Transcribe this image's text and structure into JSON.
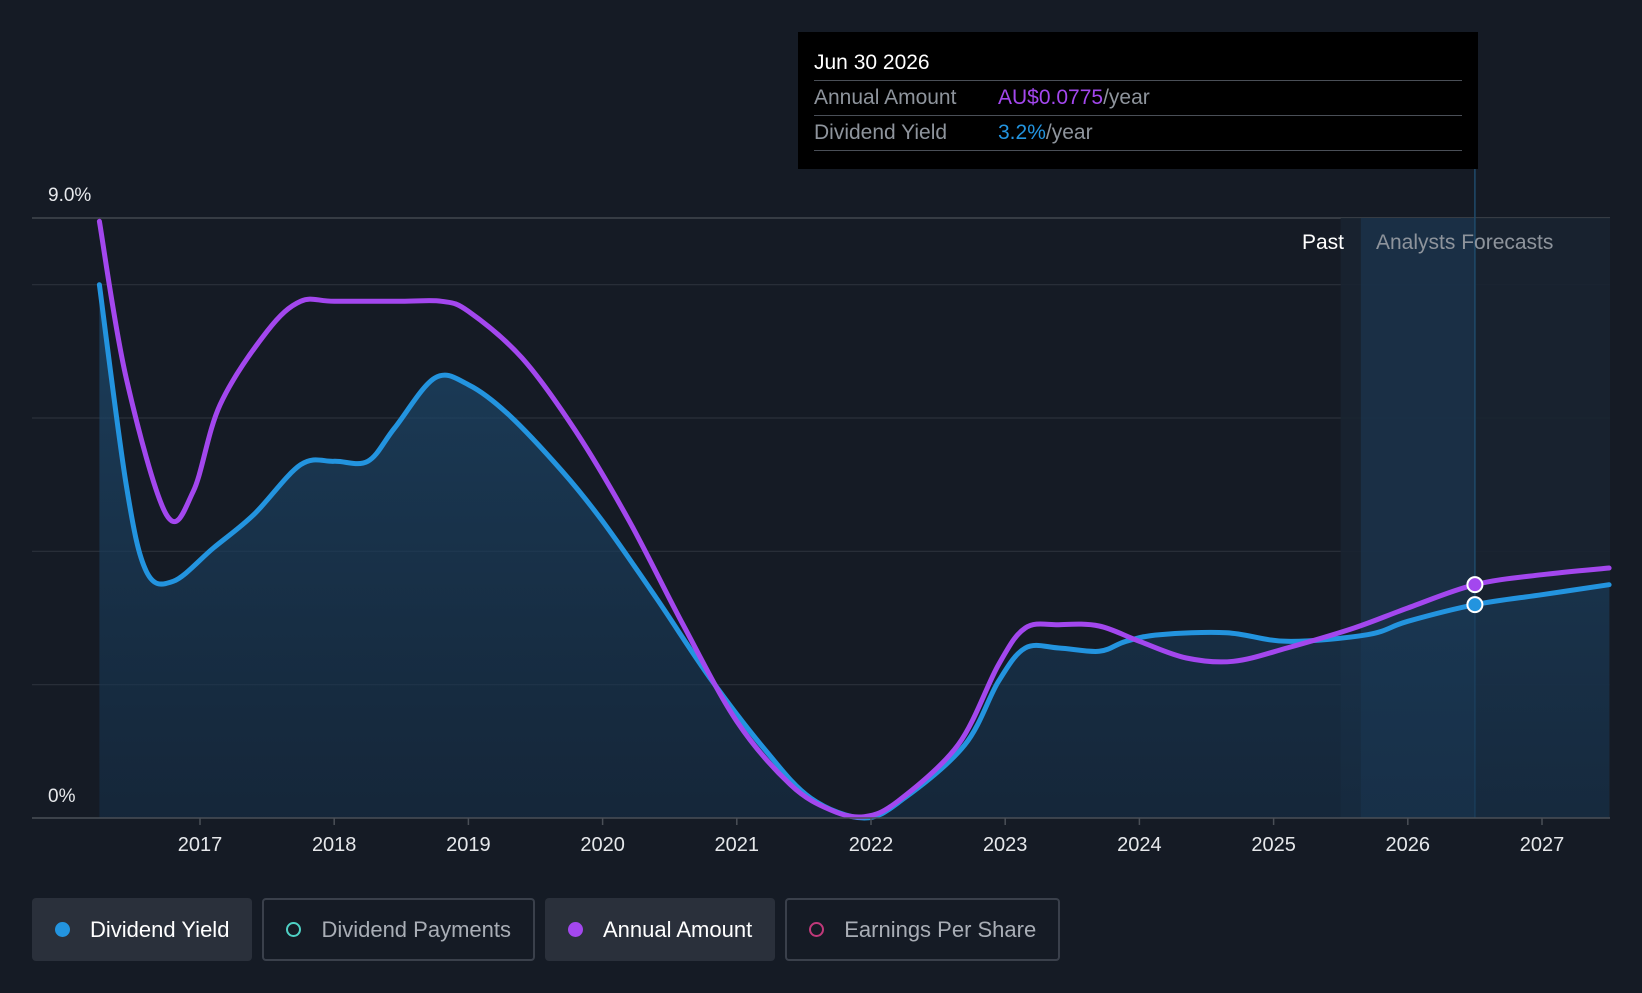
{
  "chart_data": {
    "type": "line",
    "y_axis": {
      "max_label": "9.0%",
      "min_label": "0%",
      "ylim": [
        0,
        9.0
      ]
    },
    "x_axis": {
      "tick_labels": [
        "2017",
        "2018",
        "2019",
        "2020",
        "2021",
        "2022",
        "2023",
        "2024",
        "2025",
        "2026",
        "2027"
      ],
      "xlim": [
        2016.0,
        2027.5
      ]
    },
    "regions": {
      "past_label": "Past",
      "forecast_label": "Analysts Forecasts",
      "forecast_start": 2025.5,
      "highlight_start": 2025.65,
      "highlight_end": 2026.5
    },
    "series": [
      {
        "name": "Dividend Yield",
        "color": "#2394df",
        "area": true,
        "points": [
          [
            2016.25,
            8.0
          ],
          [
            2016.45,
            5.0
          ],
          [
            2016.6,
            3.7
          ],
          [
            2016.8,
            3.55
          ],
          [
            2017.1,
            4.05
          ],
          [
            2017.4,
            4.55
          ],
          [
            2017.75,
            5.3
          ],
          [
            2018.0,
            5.35
          ],
          [
            2018.25,
            5.35
          ],
          [
            2018.45,
            5.85
          ],
          [
            2018.75,
            6.6
          ],
          [
            2019.0,
            6.5
          ],
          [
            2019.3,
            6.05
          ],
          [
            2019.7,
            5.2
          ],
          [
            2020.0,
            4.45
          ],
          [
            2020.4,
            3.3
          ],
          [
            2020.8,
            2.1
          ],
          [
            2021.2,
            1.05
          ],
          [
            2021.55,
            0.3
          ],
          [
            2021.95,
            0.0
          ],
          [
            2022.25,
            0.3
          ],
          [
            2022.7,
            1.1
          ],
          [
            2022.95,
            2.05
          ],
          [
            2023.15,
            2.55
          ],
          [
            2023.4,
            2.55
          ],
          [
            2023.7,
            2.5
          ],
          [
            2023.9,
            2.65
          ],
          [
            2024.15,
            2.75
          ],
          [
            2024.65,
            2.78
          ],
          [
            2025.1,
            2.65
          ],
          [
            2025.7,
            2.75
          ],
          [
            2026.0,
            2.95
          ],
          [
            2026.5,
            3.2
          ],
          [
            2027.0,
            3.35
          ],
          [
            2027.5,
            3.5
          ]
        ]
      },
      {
        "name": "Annual Amount",
        "color": "#a347ee",
        "area": false,
        "points": [
          [
            2016.25,
            8.95
          ],
          [
            2016.45,
            6.6
          ],
          [
            2016.75,
            4.55
          ],
          [
            2016.95,
            4.9
          ],
          [
            2017.15,
            6.2
          ],
          [
            2017.5,
            7.3
          ],
          [
            2017.75,
            7.75
          ],
          [
            2018.0,
            7.75
          ],
          [
            2018.5,
            7.75
          ],
          [
            2018.8,
            7.75
          ],
          [
            2019.0,
            7.6
          ],
          [
            2019.4,
            6.9
          ],
          [
            2019.8,
            5.8
          ],
          [
            2020.2,
            4.45
          ],
          [
            2020.6,
            2.9
          ],
          [
            2021.0,
            1.45
          ],
          [
            2021.4,
            0.5
          ],
          [
            2021.7,
            0.12
          ],
          [
            2021.95,
            0.02
          ],
          [
            2022.2,
            0.25
          ],
          [
            2022.65,
            1.1
          ],
          [
            2022.95,
            2.3
          ],
          [
            2023.15,
            2.85
          ],
          [
            2023.4,
            2.9
          ],
          [
            2023.7,
            2.88
          ],
          [
            2024.0,
            2.65
          ],
          [
            2024.35,
            2.4
          ],
          [
            2024.7,
            2.35
          ],
          [
            2025.1,
            2.55
          ],
          [
            2025.6,
            2.85
          ],
          [
            2026.0,
            3.15
          ],
          [
            2026.5,
            3.5
          ],
          [
            2027.0,
            3.65
          ],
          [
            2027.5,
            3.75
          ]
        ]
      }
    ],
    "highlight_points": [
      {
        "series": "Annual Amount",
        "x": 2026.5,
        "y": 3.5,
        "color": "#a347ee"
      },
      {
        "series": "Dividend Yield",
        "x": 2026.5,
        "y": 3.2,
        "color": "#2394df"
      }
    ]
  },
  "tooltip": {
    "date": "Jun 30 2026",
    "rows": [
      {
        "label": "Annual Amount",
        "value": "AU$0.0775",
        "unit": "/year",
        "color": "#a347ee"
      },
      {
        "label": "Dividend Yield",
        "value": "3.2%",
        "unit": "/year",
        "color": "#2394df"
      }
    ]
  },
  "legend": [
    {
      "label": "Dividend Yield",
      "color": "#2394df",
      "active": true
    },
    {
      "label": "Dividend Payments",
      "color": "#4fd1c5",
      "active": false
    },
    {
      "label": "Annual Amount",
      "color": "#a347ee",
      "active": true
    },
    {
      "label": "Earnings Per Share",
      "color": "#c0397a",
      "active": false
    }
  ]
}
